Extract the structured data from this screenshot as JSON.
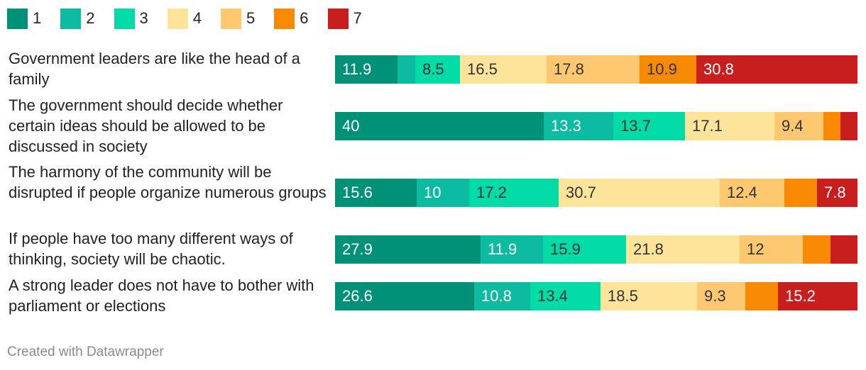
{
  "chart_data": {
    "type": "bar",
    "orientation": "horizontal",
    "stacked": true,
    "legend": [
      {
        "label": "1",
        "color": "#009178"
      },
      {
        "label": "2",
        "color": "#0cbba0"
      },
      {
        "label": "3",
        "color": "#00dba8"
      },
      {
        "label": "4",
        "color": "#fee39b"
      },
      {
        "label": "5",
        "color": "#fdc86f"
      },
      {
        "label": "6",
        "color": "#f78a02"
      },
      {
        "label": "7",
        "color": "#c81e1e"
      }
    ],
    "categories": [
      "Government leaders are like the head of a family",
      "The government should decide whether certain ideas should be allowed to be discussed in society",
      "The harmony of the community will be disrupted if people organize numerous groups",
      "If people have too many different ways of thinking, society will be chaotic.",
      "A strong leader does not have to bother with parliament or elections"
    ],
    "rows": [
      {
        "values": [
          11.9,
          3.5,
          8.5,
          16.5,
          17.8,
          10.9,
          30.8
        ],
        "labels": [
          "11.9",
          "",
          "8.5",
          "16.5",
          "17.8",
          "10.9",
          "30.8"
        ]
      },
      {
        "values": [
          40,
          13.3,
          13.7,
          17.1,
          9.4,
          3.3,
          3.2
        ],
        "labels": [
          "40",
          "13.3",
          "13.7",
          "17.1",
          "9.4",
          "",
          ""
        ]
      },
      {
        "values": [
          15.6,
          10,
          17.2,
          30.7,
          12.4,
          6.2,
          7.8
        ],
        "labels": [
          "15.6",
          "10",
          "17.2",
          "30.7",
          "12.4",
          "",
          "7.8"
        ]
      },
      {
        "values": [
          27.9,
          11.9,
          15.9,
          21.8,
          12,
          5.3,
          5.2
        ],
        "labels": [
          "27.9",
          "11.9",
          "15.9",
          "21.8",
          "12",
          "",
          ""
        ]
      },
      {
        "values": [
          26.6,
          10.8,
          13.4,
          18.5,
          9.3,
          6.2,
          15.2
        ],
        "labels": [
          "26.6",
          "10.8",
          "13.4",
          "18.5",
          "9.3",
          "",
          "15.2"
        ]
      }
    ],
    "xlim": [
      0,
      100
    ]
  },
  "footer": "Created with Datawrapper"
}
